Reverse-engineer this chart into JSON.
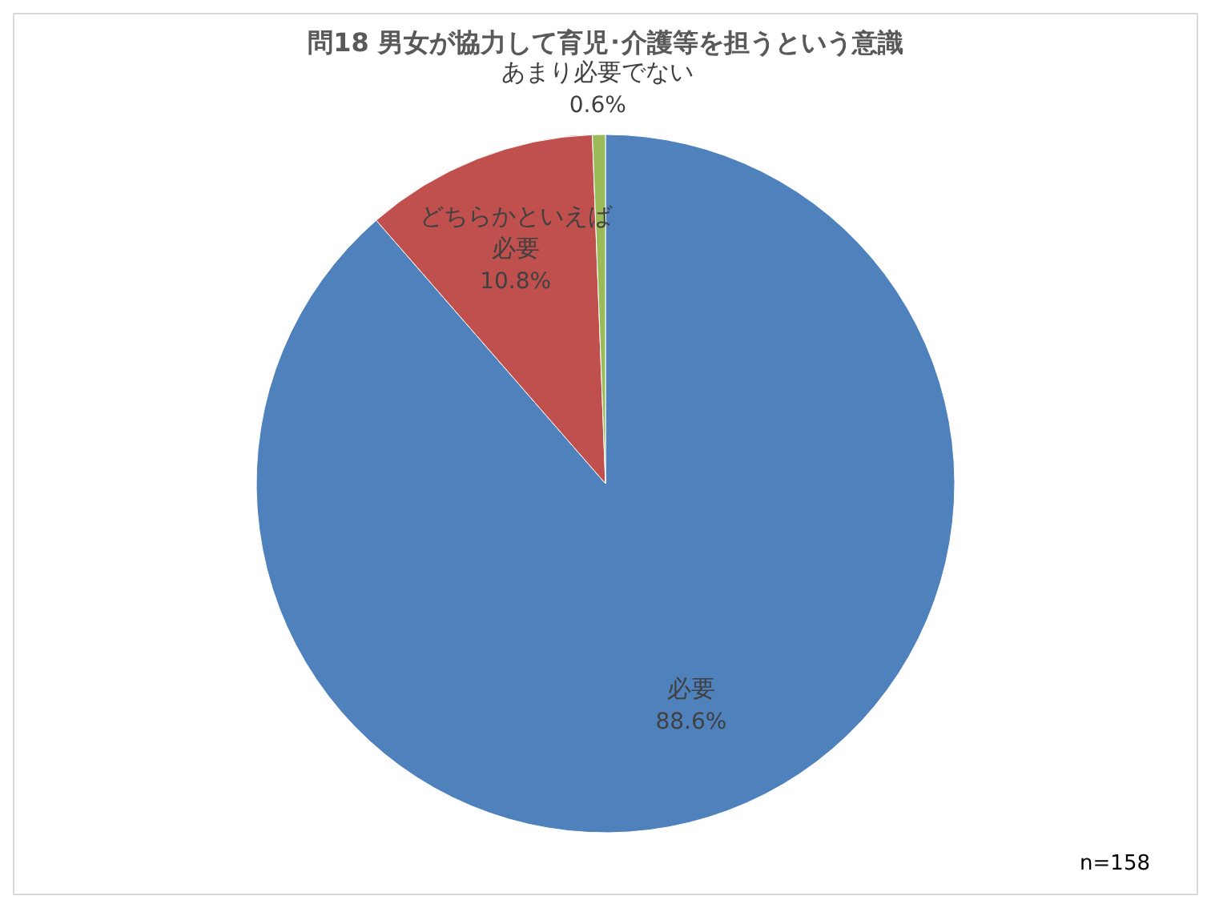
{
  "chart_data": {
    "type": "pie",
    "title": "問18  男女が協力して育児･介護等を担うという意識",
    "categories": [
      "必要",
      "どちらかといえば必要",
      "あまり必要でない"
    ],
    "values": [
      88.6,
      10.8,
      0.6
    ],
    "value_labels": [
      "88.6%",
      "10.8%",
      "0.6%"
    ],
    "colors": [
      "#4f81bd",
      "#c0504d",
      "#9bbb59"
    ],
    "annotations": [
      "n=158"
    ]
  }
}
